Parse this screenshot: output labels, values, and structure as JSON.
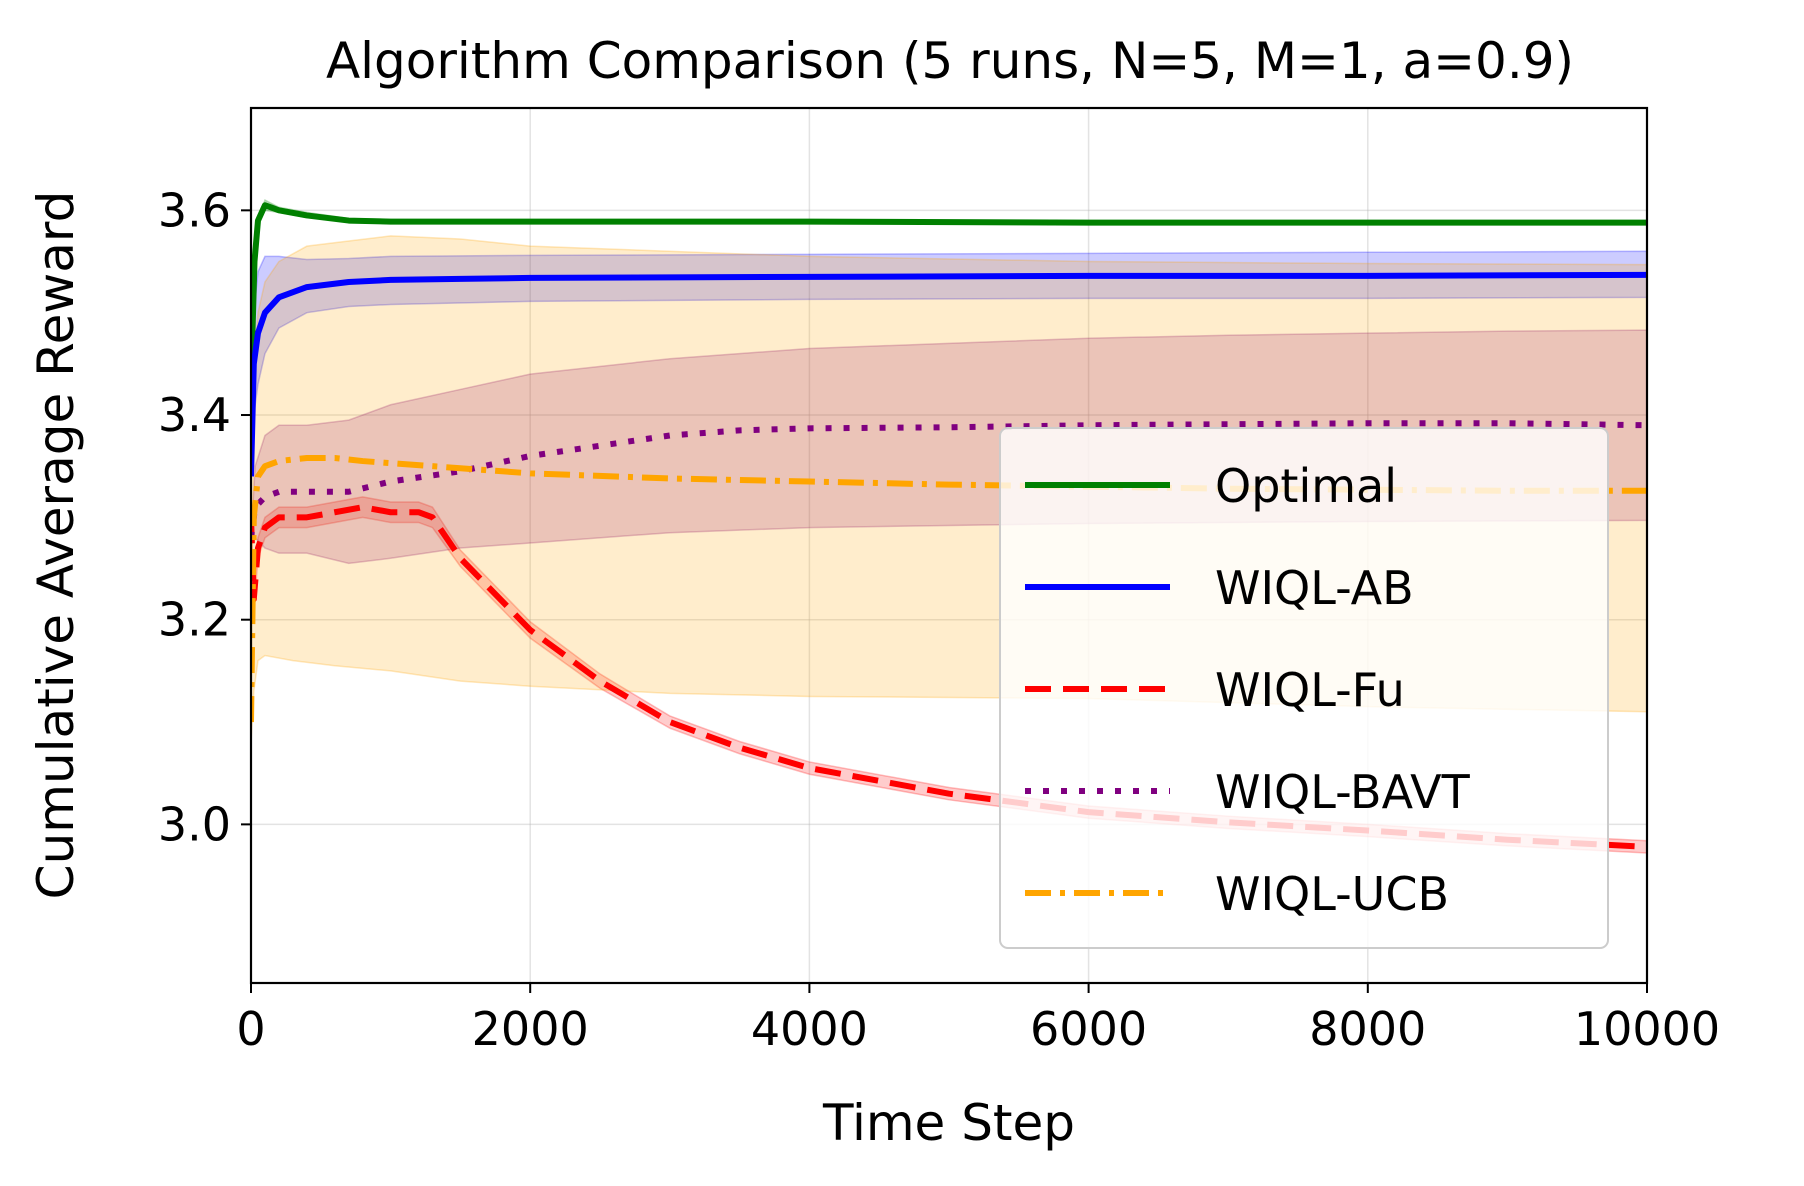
{
  "chart_data": {
    "type": "line",
    "title": "Algorithm Comparison (5 runs, N=5, M=1, a=0.9)",
    "xlabel": "Time Step",
    "ylabel": "Cumulative Average Reward",
    "xlim": [
      0,
      10000
    ],
    "ylim": [
      2.845,
      3.7
    ],
    "xticks": [
      0,
      2000,
      4000,
      6000,
      8000,
      10000
    ],
    "xtick_labels": [
      "0",
      "2000",
      "4000",
      "6000",
      "8000",
      "10000"
    ],
    "yticks": [
      3.0,
      3.2,
      3.4,
      3.6
    ],
    "ytick_labels": [
      "3.0",
      "3.2",
      "3.4",
      "3.6"
    ],
    "grid": true,
    "legend_position": "lower-right",
    "series": [
      {
        "name": "Optimal",
        "color": "#008000",
        "style": "solid",
        "points": [
          [
            0,
            3.43
          ],
          [
            25,
            3.55
          ],
          [
            50,
            3.59
          ],
          [
            100,
            3.605
          ],
          [
            200,
            3.6
          ],
          [
            400,
            3.595
          ],
          [
            700,
            3.59
          ],
          [
            1000,
            3.589
          ],
          [
            1500,
            3.589
          ],
          [
            2000,
            3.589
          ],
          [
            4000,
            3.589
          ],
          [
            6000,
            3.588
          ],
          [
            8000,
            3.588
          ],
          [
            10000,
            3.588
          ]
        ],
        "band_lower": [
          [
            0,
            3.43
          ],
          [
            25,
            3.55
          ],
          [
            50,
            3.59
          ],
          [
            100,
            3.6
          ],
          [
            200,
            3.598
          ],
          [
            400,
            3.593
          ],
          [
            700,
            3.589
          ],
          [
            1000,
            3.588
          ],
          [
            2000,
            3.588
          ],
          [
            6000,
            3.587
          ],
          [
            10000,
            3.587
          ]
        ],
        "band_upper": [
          [
            0,
            3.43
          ],
          [
            25,
            3.55
          ],
          [
            50,
            3.59
          ],
          [
            100,
            3.61
          ],
          [
            200,
            3.603
          ],
          [
            400,
            3.598
          ],
          [
            700,
            3.592
          ],
          [
            1000,
            3.591
          ],
          [
            2000,
            3.59
          ],
          [
            6000,
            3.589
          ],
          [
            10000,
            3.589
          ]
        ]
      },
      {
        "name": "WIQL-AB",
        "color": "#0000ff",
        "style": "solid",
        "points": [
          [
            0,
            3.34
          ],
          [
            20,
            3.45
          ],
          [
            50,
            3.48
          ],
          [
            100,
            3.5
          ],
          [
            200,
            3.515
          ],
          [
            400,
            3.525
          ],
          [
            700,
            3.53
          ],
          [
            1000,
            3.532
          ],
          [
            1500,
            3.533
          ],
          [
            2000,
            3.534
          ],
          [
            4000,
            3.535
          ],
          [
            6000,
            3.536
          ],
          [
            8000,
            3.536
          ],
          [
            10000,
            3.537
          ]
        ],
        "band_lower": [
          [
            0,
            3.34
          ],
          [
            20,
            3.4
          ],
          [
            50,
            3.43
          ],
          [
            100,
            3.46
          ],
          [
            200,
            3.485
          ],
          [
            400,
            3.5
          ],
          [
            700,
            3.506
          ],
          [
            1000,
            3.508
          ],
          [
            2000,
            3.511
          ],
          [
            4000,
            3.513
          ],
          [
            6000,
            3.514
          ],
          [
            8000,
            3.514
          ],
          [
            10000,
            3.515
          ]
        ],
        "band_upper": [
          [
            0,
            3.34
          ],
          [
            20,
            3.5
          ],
          [
            50,
            3.54
          ],
          [
            100,
            3.555
          ],
          [
            200,
            3.555
          ],
          [
            400,
            3.552
          ],
          [
            700,
            3.553
          ],
          [
            1000,
            3.555
          ],
          [
            2000,
            3.556
          ],
          [
            4000,
            3.557
          ],
          [
            6000,
            3.558
          ],
          [
            8000,
            3.559
          ],
          [
            10000,
            3.56
          ]
        ]
      },
      {
        "name": "WIQL-Fu",
        "color": "#ff0000",
        "style": "dashed",
        "points": [
          [
            0,
            3.3
          ],
          [
            20,
            3.22
          ],
          [
            50,
            3.27
          ],
          [
            100,
            3.29
          ],
          [
            200,
            3.3
          ],
          [
            400,
            3.3
          ],
          [
            600,
            3.305
          ],
          [
            800,
            3.31
          ],
          [
            1000,
            3.305
          ],
          [
            1200,
            3.305
          ],
          [
            1300,
            3.3
          ],
          [
            1500,
            3.26
          ],
          [
            2000,
            3.19
          ],
          [
            2500,
            3.14
          ],
          [
            3000,
            3.1
          ],
          [
            3500,
            3.075
          ],
          [
            4000,
            3.055
          ],
          [
            5000,
            3.03
          ],
          [
            6000,
            3.012
          ],
          [
            7000,
            3.002
          ],
          [
            8000,
            2.994
          ],
          [
            9000,
            2.985
          ],
          [
            10000,
            2.978
          ]
        ],
        "band_lower": [
          [
            0,
            3.3
          ],
          [
            20,
            3.21
          ],
          [
            50,
            3.26
          ],
          [
            100,
            3.28
          ],
          [
            200,
            3.29
          ],
          [
            400,
            3.29
          ],
          [
            600,
            3.295
          ],
          [
            800,
            3.3
          ],
          [
            1000,
            3.295
          ],
          [
            1200,
            3.295
          ],
          [
            1300,
            3.29
          ],
          [
            1500,
            3.252
          ],
          [
            2000,
            3.182
          ],
          [
            2500,
            3.133
          ],
          [
            3000,
            3.094
          ],
          [
            3500,
            3.069
          ],
          [
            4000,
            3.049
          ],
          [
            5000,
            3.024
          ],
          [
            6000,
            3.006
          ],
          [
            7000,
            2.996
          ],
          [
            8000,
            2.988
          ],
          [
            9000,
            2.979
          ],
          [
            10000,
            2.972
          ]
        ],
        "band_upper": [
          [
            0,
            3.3
          ],
          [
            20,
            3.23
          ],
          [
            50,
            3.28
          ],
          [
            100,
            3.3
          ],
          [
            200,
            3.31
          ],
          [
            400,
            3.31
          ],
          [
            600,
            3.315
          ],
          [
            800,
            3.32
          ],
          [
            1000,
            3.315
          ],
          [
            1200,
            3.315
          ],
          [
            1300,
            3.31
          ],
          [
            1500,
            3.268
          ],
          [
            2000,
            3.198
          ],
          [
            2500,
            3.147
          ],
          [
            3000,
            3.106
          ],
          [
            3500,
            3.081
          ],
          [
            4000,
            3.061
          ],
          [
            5000,
            3.036
          ],
          [
            6000,
            3.018
          ],
          [
            7000,
            3.008
          ],
          [
            8000,
            3.0
          ],
          [
            9000,
            2.991
          ],
          [
            10000,
            2.984
          ]
        ]
      },
      {
        "name": "WIQL-BAVT",
        "color": "#800080",
        "style": "dotted",
        "points": [
          [
            0,
            3.28
          ],
          [
            30,
            3.31
          ],
          [
            100,
            3.32
          ],
          [
            200,
            3.325
          ],
          [
            400,
            3.325
          ],
          [
            700,
            3.325
          ],
          [
            1000,
            3.335
          ],
          [
            1500,
            3.345
          ],
          [
            2000,
            3.36
          ],
          [
            2500,
            3.37
          ],
          [
            3000,
            3.38
          ],
          [
            3500,
            3.385
          ],
          [
            4000,
            3.387
          ],
          [
            5000,
            3.388
          ],
          [
            6000,
            3.39
          ],
          [
            7000,
            3.391
          ],
          [
            8000,
            3.392
          ],
          [
            9000,
            3.392
          ],
          [
            10000,
            3.39
          ]
        ],
        "band_lower": [
          [
            0,
            3.28
          ],
          [
            30,
            3.28
          ],
          [
            100,
            3.27
          ],
          [
            200,
            3.265
          ],
          [
            400,
            3.265
          ],
          [
            700,
            3.255
          ],
          [
            1000,
            3.26
          ],
          [
            1500,
            3.27
          ],
          [
            2000,
            3.275
          ],
          [
            3000,
            3.285
          ],
          [
            4000,
            3.29
          ],
          [
            5000,
            3.292
          ],
          [
            6000,
            3.294
          ],
          [
            8000,
            3.296
          ],
          [
            10000,
            3.297
          ]
        ],
        "band_upper": [
          [
            0,
            3.28
          ],
          [
            30,
            3.35
          ],
          [
            100,
            3.38
          ],
          [
            200,
            3.39
          ],
          [
            400,
            3.39
          ],
          [
            700,
            3.395
          ],
          [
            1000,
            3.41
          ],
          [
            1500,
            3.425
          ],
          [
            2000,
            3.44
          ],
          [
            3000,
            3.455
          ],
          [
            4000,
            3.465
          ],
          [
            5000,
            3.47
          ],
          [
            6000,
            3.475
          ],
          [
            7000,
            3.478
          ],
          [
            8000,
            3.48
          ],
          [
            9000,
            3.482
          ],
          [
            10000,
            3.483
          ]
        ]
      },
      {
        "name": "WIQL-UCB",
        "color": "#ffa500",
        "style": "dashdot",
        "points": [
          [
            0,
            3.1
          ],
          [
            20,
            3.3
          ],
          [
            50,
            3.34
          ],
          [
            100,
            3.35
          ],
          [
            200,
            3.355
          ],
          [
            400,
            3.358
          ],
          [
            600,
            3.358
          ],
          [
            800,
            3.355
          ],
          [
            1000,
            3.353
          ],
          [
            1500,
            3.348
          ],
          [
            2000,
            3.343
          ],
          [
            3000,
            3.338
          ],
          [
            4000,
            3.335
          ],
          [
            5000,
            3.332
          ],
          [
            6000,
            3.33
          ],
          [
            7000,
            3.328
          ],
          [
            8000,
            3.327
          ],
          [
            9000,
            3.326
          ],
          [
            10000,
            3.326
          ]
        ],
        "band_lower": [
          [
            0,
            3.08
          ],
          [
            20,
            3.13
          ],
          [
            50,
            3.16
          ],
          [
            100,
            3.165
          ],
          [
            300,
            3.16
          ],
          [
            600,
            3.155
          ],
          [
            1000,
            3.15
          ],
          [
            1500,
            3.14
          ],
          [
            2000,
            3.135
          ],
          [
            3000,
            3.128
          ],
          [
            4000,
            3.125
          ],
          [
            6000,
            3.123
          ],
          [
            8000,
            3.115
          ],
          [
            10000,
            3.11
          ]
        ],
        "band_upper": [
          [
            0,
            3.12
          ],
          [
            20,
            3.45
          ],
          [
            50,
            3.5
          ],
          [
            100,
            3.53
          ],
          [
            200,
            3.55
          ],
          [
            400,
            3.565
          ],
          [
            700,
            3.57
          ],
          [
            1000,
            3.575
          ],
          [
            1500,
            3.572
          ],
          [
            2000,
            3.565
          ],
          [
            4000,
            3.555
          ],
          [
            6000,
            3.55
          ],
          [
            8000,
            3.548
          ],
          [
            10000,
            3.547
          ]
        ]
      }
    ]
  }
}
